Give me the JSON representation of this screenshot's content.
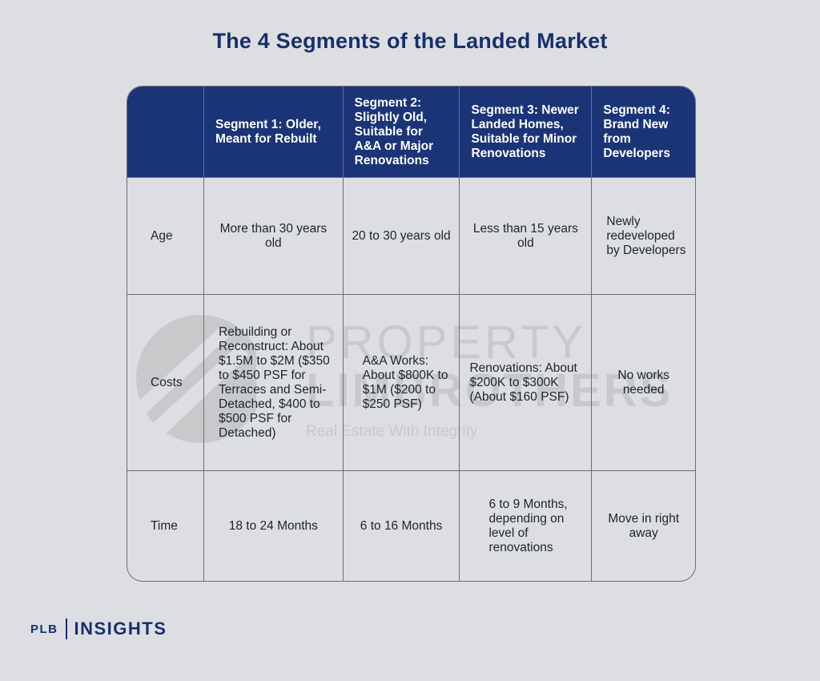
{
  "title": "The 4 Segments of the Landed Market",
  "watermark": {
    "line1": "PROPERTY",
    "line2": "LIMBROTHERS",
    "line3": "Real Estate With Integrity"
  },
  "table": {
    "headers": [
      "",
      "Segment 1: Older, Meant for Rebuilt",
      "Segment 2: Slightly Old, Suitable for A&A or Major Renovations",
      "Segment 3: Newer Landed Homes, Suitable for Minor Renovations",
      "Segment 4: Brand New from Developers"
    ],
    "rows": [
      {
        "label": "Age",
        "cells": [
          "More than 30 years old",
          "20 to 30 years old",
          "Less than 15 years old",
          "Newly redeveloped by Developers"
        ]
      },
      {
        "label": "Costs",
        "cells": [
          "Rebuilding or Reconstruct: About $1.5M to $2M ($350 to $450 PSF for Terraces and Semi-Detached, $400 to $500 PSF for Detached)",
          "A&A Works: About $800K to $1M ($200 to  $250 PSF)",
          "Renovations: About $200K to $300K (About $160 PSF)",
          "No works needed"
        ]
      },
      {
        "label": "Time",
        "cells": [
          "18 to 24 Months",
          "6 to 16 Months",
          "6 to 9 Months, depending on level of renovations",
          "Move in right away"
        ]
      }
    ]
  },
  "footer": {
    "brand": "PLB",
    "product": "INSIGHTS"
  },
  "colors": {
    "header_bg": "#1a3477",
    "title": "#16306e",
    "page_bg": "#dcdee1"
  }
}
